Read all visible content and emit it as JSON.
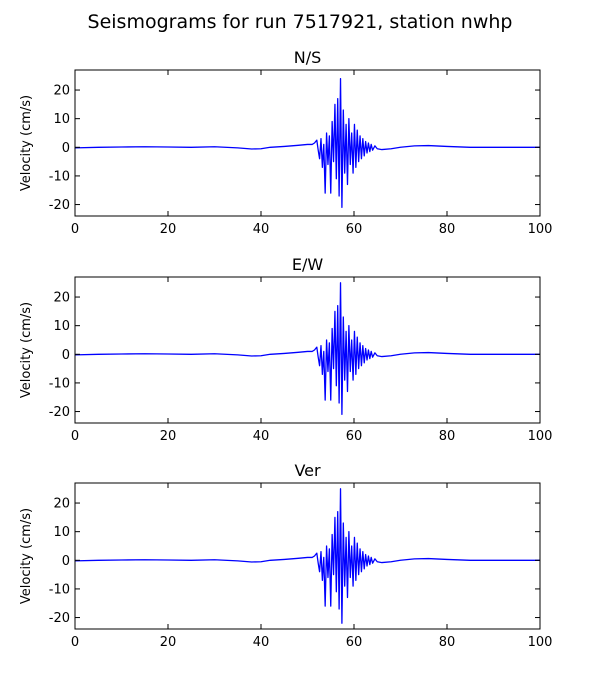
{
  "figure": {
    "title": "Seismograms for run 7517921, station nwhp"
  },
  "chart_data": [
    {
      "type": "line",
      "title": "N/S",
      "xlabel": "",
      "ylabel": "Velocity (cm/s)",
      "xlim": [
        0,
        100
      ],
      "ylim": [
        -24,
        27
      ],
      "xticks": [
        0,
        20,
        40,
        60,
        80,
        100
      ],
      "yticks": [
        -20,
        -10,
        0,
        10,
        20
      ],
      "grid": false,
      "color": "#0000ff",
      "series": [
        {
          "x": [
            0,
            5,
            10,
            15,
            20,
            25,
            30,
            35,
            38,
            40,
            42,
            45,
            48,
            50,
            51,
            51.5,
            52,
            52.3,
            52.6,
            52.9,
            53.2,
            53.5,
            53.8,
            54.1,
            54.4,
            54.7,
            55,
            55.3,
            55.6,
            55.9,
            56.2,
            56.5,
            56.8,
            57.1,
            57.4,
            57.7,
            58,
            58.3,
            58.6,
            58.9,
            59.2,
            59.5,
            59.8,
            60.1,
            60.4,
            60.7,
            61,
            61.3,
            61.6,
            61.9,
            62.2,
            62.5,
            62.8,
            63.1,
            63.4,
            63.7,
            64,
            64.5,
            65,
            66,
            68,
            70,
            73,
            76,
            80,
            85,
            90,
            95,
            100
          ],
          "y": [
            -0.2,
            0,
            0.1,
            0.2,
            0.1,
            0,
            0.2,
            -0.2,
            -0.6,
            -0.5,
            0,
            0.3,
            0.7,
            1,
            1,
            1.5,
            2.5,
            -1,
            -4,
            3,
            -7,
            1,
            -16,
            5,
            -6,
            4,
            -16,
            9,
            -5,
            15,
            -11,
            17,
            -17,
            24,
            -21,
            13,
            -9,
            8,
            -13,
            10,
            -6,
            5,
            -9,
            8,
            -7,
            6,
            -5,
            4,
            -4,
            3,
            -3,
            2,
            -2,
            1.5,
            -1.5,
            1,
            -1,
            0.5,
            -0.5,
            -0.8,
            -0.5,
            0,
            0.5,
            0.6,
            0.3,
            0,
            0,
            0,
            0
          ]
        }
      ]
    },
    {
      "type": "line",
      "title": "E/W",
      "xlabel": "",
      "ylabel": "Velocity (cm/s)",
      "xlim": [
        0,
        100
      ],
      "ylim": [
        -24,
        27
      ],
      "xticks": [
        0,
        20,
        40,
        60,
        80,
        100
      ],
      "yticks": [
        -20,
        -10,
        0,
        10,
        20
      ],
      "grid": false,
      "color": "#0000ff",
      "series": [
        {
          "x": [
            0,
            5,
            10,
            15,
            20,
            25,
            30,
            35,
            38,
            40,
            42,
            45,
            48,
            50,
            51,
            51.5,
            52,
            52.3,
            52.6,
            52.9,
            53.2,
            53.5,
            53.8,
            54.1,
            54.4,
            54.7,
            55,
            55.3,
            55.6,
            55.9,
            56.2,
            56.5,
            56.8,
            57.1,
            57.4,
            57.7,
            58,
            58.3,
            58.6,
            58.9,
            59.2,
            59.5,
            59.8,
            60.1,
            60.4,
            60.7,
            61,
            61.3,
            61.6,
            61.9,
            62.2,
            62.5,
            62.8,
            63.1,
            63.4,
            63.7,
            64,
            64.5,
            65,
            66,
            68,
            70,
            73,
            76,
            80,
            85,
            90,
            95,
            100
          ],
          "y": [
            -0.2,
            0,
            0.1,
            0.2,
            0.1,
            0,
            0.2,
            -0.2,
            -0.6,
            -0.5,
            0,
            0.3,
            0.7,
            1,
            1,
            1.5,
            2.5,
            -1,
            -4,
            3,
            -7,
            1,
            -16,
            5,
            -6,
            4,
            -16,
            9,
            -5,
            15,
            -11,
            17,
            -17,
            25,
            -21,
            13,
            -9,
            8,
            -13,
            10,
            -6,
            5,
            -9,
            8,
            -7,
            6,
            -5,
            4,
            -4,
            3,
            -3,
            2,
            -2,
            1.5,
            -1.5,
            1,
            -1,
            0.5,
            -0.5,
            -0.8,
            -0.5,
            0,
            0.5,
            0.6,
            0.3,
            0,
            0,
            0,
            0
          ]
        }
      ]
    },
    {
      "type": "line",
      "title": "Ver",
      "xlabel": "",
      "ylabel": "Velocity (cm/s)",
      "xlim": [
        0,
        100
      ],
      "ylim": [
        -24,
        27
      ],
      "xticks": [
        0,
        20,
        40,
        60,
        80,
        100
      ],
      "yticks": [
        -20,
        -10,
        0,
        10,
        20
      ],
      "grid": false,
      "color": "#0000ff",
      "series": [
        {
          "x": [
            0,
            5,
            10,
            15,
            20,
            25,
            30,
            35,
            38,
            40,
            42,
            45,
            48,
            50,
            51,
            51.5,
            52,
            52.3,
            52.6,
            52.9,
            53.2,
            53.5,
            53.8,
            54.1,
            54.4,
            54.7,
            55,
            55.3,
            55.6,
            55.9,
            56.2,
            56.5,
            56.8,
            57.1,
            57.4,
            57.7,
            58,
            58.3,
            58.6,
            58.9,
            59.2,
            59.5,
            59.8,
            60.1,
            60.4,
            60.7,
            61,
            61.3,
            61.6,
            61.9,
            62.2,
            62.5,
            62.8,
            63.1,
            63.4,
            63.7,
            64,
            64.5,
            65,
            66,
            68,
            70,
            73,
            76,
            80,
            85,
            90,
            95,
            100
          ],
          "y": [
            -0.2,
            0,
            0.1,
            0.2,
            0.1,
            0,
            0.2,
            -0.2,
            -0.6,
            -0.5,
            0,
            0.3,
            0.7,
            1,
            1,
            1.5,
            2.5,
            -1,
            -4,
            3,
            -7,
            1,
            -16,
            5,
            -6,
            4,
            -16,
            9,
            -5,
            15,
            -11,
            17,
            -17,
            25,
            -22,
            13,
            -9,
            8,
            -13,
            10,
            -6,
            5,
            -9,
            8,
            -7,
            6,
            -5,
            4,
            -4,
            3,
            -3,
            2,
            -2,
            1.5,
            -1.5,
            1,
            -1,
            0.5,
            -0.5,
            -0.8,
            -0.5,
            0,
            0.5,
            0.6,
            0.3,
            0,
            0,
            0,
            0
          ]
        }
      ]
    }
  ]
}
